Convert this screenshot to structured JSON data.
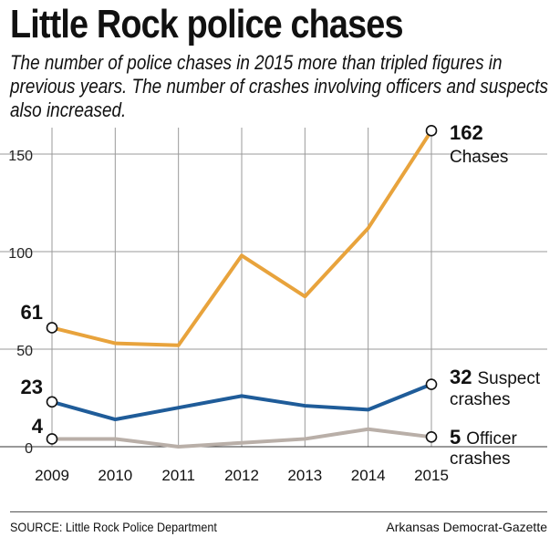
{
  "chart_data": {
    "type": "line",
    "title": "Little Rock police chases",
    "subtitle": "The number of police chases in 2015 more than tripled figures in previous years. The number of crashes involving officers and suspects also increased.",
    "x": [
      "2009",
      "2010",
      "2011",
      "2012",
      "2013",
      "2014",
      "2015"
    ],
    "ylim": [
      0,
      165
    ],
    "yticks": [
      "0",
      "50",
      "100",
      "150"
    ],
    "grid": true,
    "series": [
      {
        "name": "Chases",
        "color": "#E8A33C",
        "values": [
          61,
          53,
          52,
          98,
          77,
          112,
          162
        ],
        "start_label": "61",
        "end_value_label": "162",
        "end_name_lines": [
          "Chases"
        ]
      },
      {
        "name": "Suspect crashes",
        "color": "#1F5C99",
        "values": [
          23,
          14,
          20,
          26,
          21,
          19,
          32
        ],
        "start_label": "23",
        "end_value_label": "32",
        "end_name_lines": [
          "Suspect",
          "crashes"
        ]
      },
      {
        "name": "Officer crashes",
        "color": "#B9AFA8",
        "values": [
          4,
          4,
          0,
          2,
          4,
          9,
          5
        ],
        "start_label": "4",
        "end_value_label": "5",
        "end_name_lines": [
          "Officer",
          "crashes"
        ]
      }
    ]
  },
  "footer": {
    "source": "SOURCE: Little Rock Police Department",
    "credit": "Arkansas Democrat-Gazette"
  }
}
